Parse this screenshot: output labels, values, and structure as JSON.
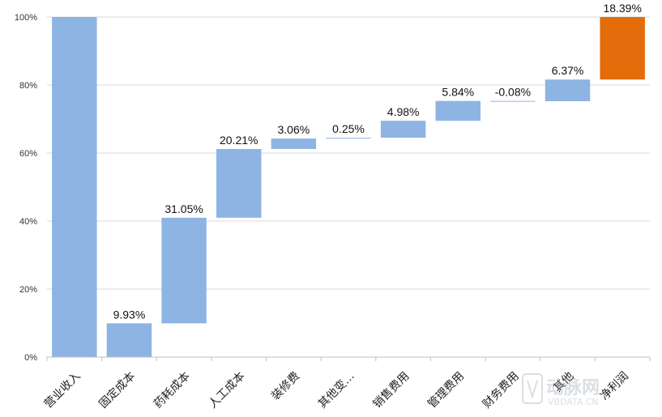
{
  "chart_data": {
    "type": "bar",
    "subtype": "waterfall",
    "categories": [
      "营业收入",
      "固定成本",
      "药耗成本",
      "人工成本",
      "装修费",
      "其他变…",
      "销售费用",
      "管理费用",
      "财务费用",
      "其他",
      "净利润"
    ],
    "data_labels": [
      "",
      "9.93%",
      "31.05%",
      "20.21%",
      "3.06%",
      "0.25%",
      "4.98%",
      "5.84%",
      "-0.08%",
      "6.37%",
      "18.39%"
    ],
    "values": [
      100,
      9.93,
      31.05,
      20.21,
      3.06,
      0.25,
      4.98,
      5.84,
      -0.08,
      6.37,
      18.39
    ],
    "ranges": [
      [
        0,
        100
      ],
      [
        0,
        9.93
      ],
      [
        9.93,
        40.98
      ],
      [
        40.98,
        61.19
      ],
      [
        61.19,
        64.25
      ],
      [
        64.25,
        64.5
      ],
      [
        64.5,
        69.48
      ],
      [
        69.48,
        75.32
      ],
      [
        75.24,
        75.32
      ],
      [
        75.24,
        81.61
      ],
      [
        81.61,
        100
      ]
    ],
    "colors": [
      "#8eb4e3",
      "#8eb4e3",
      "#8eb4e3",
      "#8eb4e3",
      "#8eb4e3",
      "#8eb4e3",
      "#8eb4e3",
      "#8eb4e3",
      "#8eb4e3",
      "#8eb4e3",
      "#e46c0a"
    ],
    "ylim": [
      0,
      100
    ],
    "yticks": [
      "0%",
      "20%",
      "40%",
      "60%",
      "80%",
      "100%"
    ],
    "grid": true,
    "title": "",
    "xlabel": "",
    "ylabel": ""
  },
  "watermark": {
    "text": "动脉网",
    "subtext": "VBDATA.CN"
  }
}
